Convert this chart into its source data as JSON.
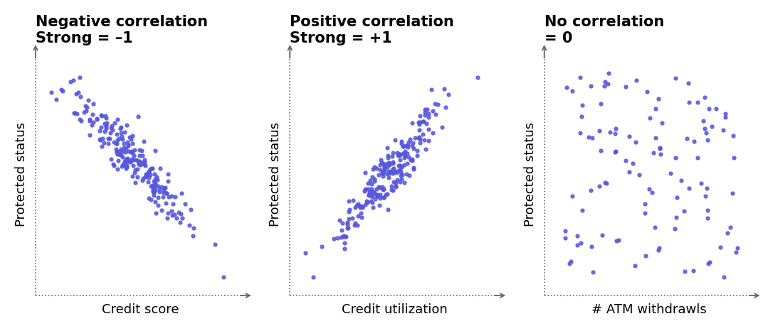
{
  "panels": [
    {
      "title_line1": "Negative correlation",
      "title_line2": "Strong = –1",
      "xlabel": "Credit score",
      "ylabel": "Protected status",
      "correlation": -0.93,
      "n_points": 220,
      "seed": 42
    },
    {
      "title_line1": "Positive correlation",
      "title_line2": "Strong = +1",
      "xlabel": "Credit utilization",
      "ylabel": "Protected status",
      "correlation": 0.93,
      "n_points": 220,
      "seed": 7
    },
    {
      "title_line1": "No correlation",
      "title_line2": "= 0",
      "xlabel": "# ATM withdrawls",
      "ylabel": "Protected status",
      "correlation": 0.0,
      "n_points": 110,
      "seed": 99
    }
  ],
  "dot_color": "#5555dd",
  "dot_size": 12,
  "dot_alpha": 0.85,
  "background_color": "#ffffff",
  "title_fontsize": 15,
  "label_fontsize": 13,
  "axis_color": "#666666",
  "arrow_color": "#666666"
}
